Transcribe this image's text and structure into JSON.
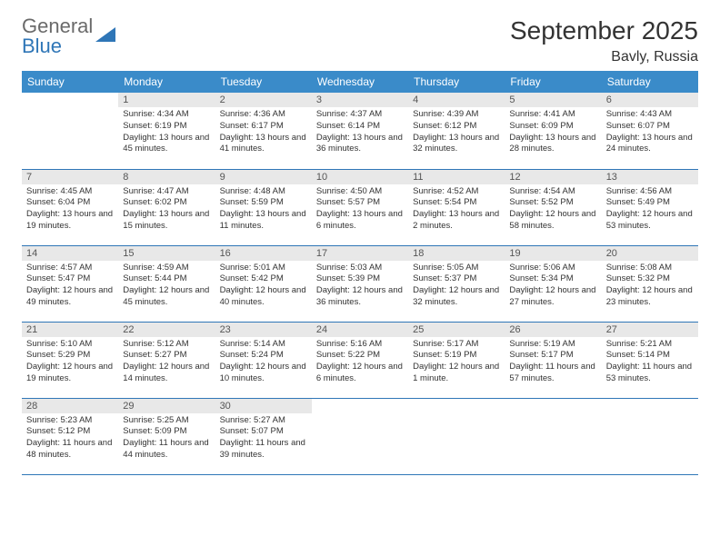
{
  "logo": {
    "word1": "General",
    "word2": "Blue"
  },
  "title": "September 2025",
  "location": "Bavly, Russia",
  "colors": {
    "header_bg": "#3a8bc9",
    "border": "#2f76b7",
    "daynum_bg": "#e8e8e8",
    "text": "#333333",
    "logo_gray": "#6a6a6a",
    "logo_blue": "#2f76b7"
  },
  "weekdays": [
    "Sunday",
    "Monday",
    "Tuesday",
    "Wednesday",
    "Thursday",
    "Friday",
    "Saturday"
  ],
  "weeks": [
    [
      {
        "n": "",
        "sr": "",
        "ss": "",
        "dl": ""
      },
      {
        "n": "1",
        "sr": "Sunrise: 4:34 AM",
        "ss": "Sunset: 6:19 PM",
        "dl": "Daylight: 13 hours and 45 minutes."
      },
      {
        "n": "2",
        "sr": "Sunrise: 4:36 AM",
        "ss": "Sunset: 6:17 PM",
        "dl": "Daylight: 13 hours and 41 minutes."
      },
      {
        "n": "3",
        "sr": "Sunrise: 4:37 AM",
        "ss": "Sunset: 6:14 PM",
        "dl": "Daylight: 13 hours and 36 minutes."
      },
      {
        "n": "4",
        "sr": "Sunrise: 4:39 AM",
        "ss": "Sunset: 6:12 PM",
        "dl": "Daylight: 13 hours and 32 minutes."
      },
      {
        "n": "5",
        "sr": "Sunrise: 4:41 AM",
        "ss": "Sunset: 6:09 PM",
        "dl": "Daylight: 13 hours and 28 minutes."
      },
      {
        "n": "6",
        "sr": "Sunrise: 4:43 AM",
        "ss": "Sunset: 6:07 PM",
        "dl": "Daylight: 13 hours and 24 minutes."
      }
    ],
    [
      {
        "n": "7",
        "sr": "Sunrise: 4:45 AM",
        "ss": "Sunset: 6:04 PM",
        "dl": "Daylight: 13 hours and 19 minutes."
      },
      {
        "n": "8",
        "sr": "Sunrise: 4:47 AM",
        "ss": "Sunset: 6:02 PM",
        "dl": "Daylight: 13 hours and 15 minutes."
      },
      {
        "n": "9",
        "sr": "Sunrise: 4:48 AM",
        "ss": "Sunset: 5:59 PM",
        "dl": "Daylight: 13 hours and 11 minutes."
      },
      {
        "n": "10",
        "sr": "Sunrise: 4:50 AM",
        "ss": "Sunset: 5:57 PM",
        "dl": "Daylight: 13 hours and 6 minutes."
      },
      {
        "n": "11",
        "sr": "Sunrise: 4:52 AM",
        "ss": "Sunset: 5:54 PM",
        "dl": "Daylight: 13 hours and 2 minutes."
      },
      {
        "n": "12",
        "sr": "Sunrise: 4:54 AM",
        "ss": "Sunset: 5:52 PM",
        "dl": "Daylight: 12 hours and 58 minutes."
      },
      {
        "n": "13",
        "sr": "Sunrise: 4:56 AM",
        "ss": "Sunset: 5:49 PM",
        "dl": "Daylight: 12 hours and 53 minutes."
      }
    ],
    [
      {
        "n": "14",
        "sr": "Sunrise: 4:57 AM",
        "ss": "Sunset: 5:47 PM",
        "dl": "Daylight: 12 hours and 49 minutes."
      },
      {
        "n": "15",
        "sr": "Sunrise: 4:59 AM",
        "ss": "Sunset: 5:44 PM",
        "dl": "Daylight: 12 hours and 45 minutes."
      },
      {
        "n": "16",
        "sr": "Sunrise: 5:01 AM",
        "ss": "Sunset: 5:42 PM",
        "dl": "Daylight: 12 hours and 40 minutes."
      },
      {
        "n": "17",
        "sr": "Sunrise: 5:03 AM",
        "ss": "Sunset: 5:39 PM",
        "dl": "Daylight: 12 hours and 36 minutes."
      },
      {
        "n": "18",
        "sr": "Sunrise: 5:05 AM",
        "ss": "Sunset: 5:37 PM",
        "dl": "Daylight: 12 hours and 32 minutes."
      },
      {
        "n": "19",
        "sr": "Sunrise: 5:06 AM",
        "ss": "Sunset: 5:34 PM",
        "dl": "Daylight: 12 hours and 27 minutes."
      },
      {
        "n": "20",
        "sr": "Sunrise: 5:08 AM",
        "ss": "Sunset: 5:32 PM",
        "dl": "Daylight: 12 hours and 23 minutes."
      }
    ],
    [
      {
        "n": "21",
        "sr": "Sunrise: 5:10 AM",
        "ss": "Sunset: 5:29 PM",
        "dl": "Daylight: 12 hours and 19 minutes."
      },
      {
        "n": "22",
        "sr": "Sunrise: 5:12 AM",
        "ss": "Sunset: 5:27 PM",
        "dl": "Daylight: 12 hours and 14 minutes."
      },
      {
        "n": "23",
        "sr": "Sunrise: 5:14 AM",
        "ss": "Sunset: 5:24 PM",
        "dl": "Daylight: 12 hours and 10 minutes."
      },
      {
        "n": "24",
        "sr": "Sunrise: 5:16 AM",
        "ss": "Sunset: 5:22 PM",
        "dl": "Daylight: 12 hours and 6 minutes."
      },
      {
        "n": "25",
        "sr": "Sunrise: 5:17 AM",
        "ss": "Sunset: 5:19 PM",
        "dl": "Daylight: 12 hours and 1 minute."
      },
      {
        "n": "26",
        "sr": "Sunrise: 5:19 AM",
        "ss": "Sunset: 5:17 PM",
        "dl": "Daylight: 11 hours and 57 minutes."
      },
      {
        "n": "27",
        "sr": "Sunrise: 5:21 AM",
        "ss": "Sunset: 5:14 PM",
        "dl": "Daylight: 11 hours and 53 minutes."
      }
    ],
    [
      {
        "n": "28",
        "sr": "Sunrise: 5:23 AM",
        "ss": "Sunset: 5:12 PM",
        "dl": "Daylight: 11 hours and 48 minutes."
      },
      {
        "n": "29",
        "sr": "Sunrise: 5:25 AM",
        "ss": "Sunset: 5:09 PM",
        "dl": "Daylight: 11 hours and 44 minutes."
      },
      {
        "n": "30",
        "sr": "Sunrise: 5:27 AM",
        "ss": "Sunset: 5:07 PM",
        "dl": "Daylight: 11 hours and 39 minutes."
      },
      {
        "n": "",
        "sr": "",
        "ss": "",
        "dl": ""
      },
      {
        "n": "",
        "sr": "",
        "ss": "",
        "dl": ""
      },
      {
        "n": "",
        "sr": "",
        "ss": "",
        "dl": ""
      },
      {
        "n": "",
        "sr": "",
        "ss": "",
        "dl": ""
      }
    ]
  ]
}
